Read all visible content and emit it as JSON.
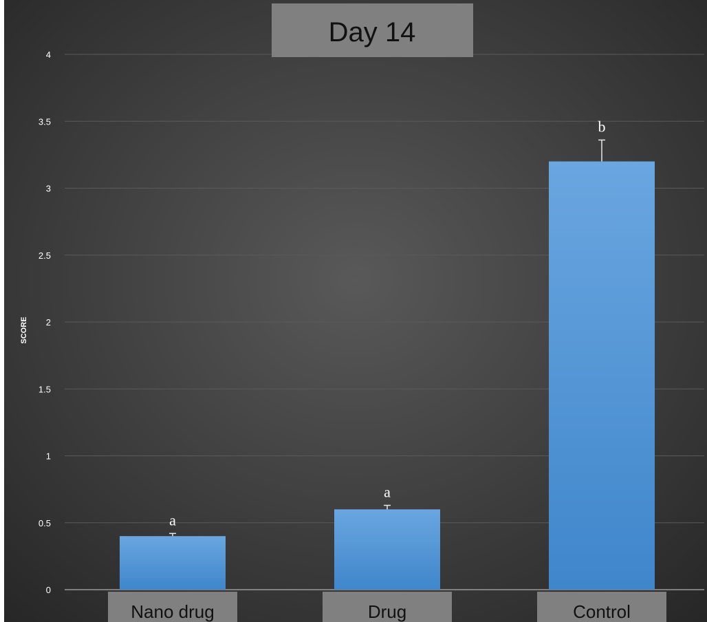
{
  "chart_data": {
    "type": "bar",
    "title": "Day 14",
    "xlabel": "",
    "ylabel": "SCORE",
    "categories": [
      "Nano drug",
      "Drug",
      "Control"
    ],
    "values": [
      0.4,
      0.6,
      3.2
    ],
    "error_plus": [
      0.02,
      0.03,
      0.16
    ],
    "significance_labels": [
      "a",
      "a",
      "b"
    ],
    "ylim": [
      0,
      4
    ],
    "yticks": [
      "0",
      "0.5",
      "1",
      "1.5",
      "2",
      "2.5",
      "3",
      "3.5",
      "4"
    ],
    "grid": true,
    "legend": "none",
    "colors": {
      "background_center": "#595959",
      "background_edge": "#262626",
      "bar_top": "#6aa6e0",
      "bar_bottom": "#3f86cb",
      "gridline": "#5a5a5a",
      "axis_text": "#ffffff",
      "label_box": "#808080",
      "label_text": "#111111"
    }
  }
}
